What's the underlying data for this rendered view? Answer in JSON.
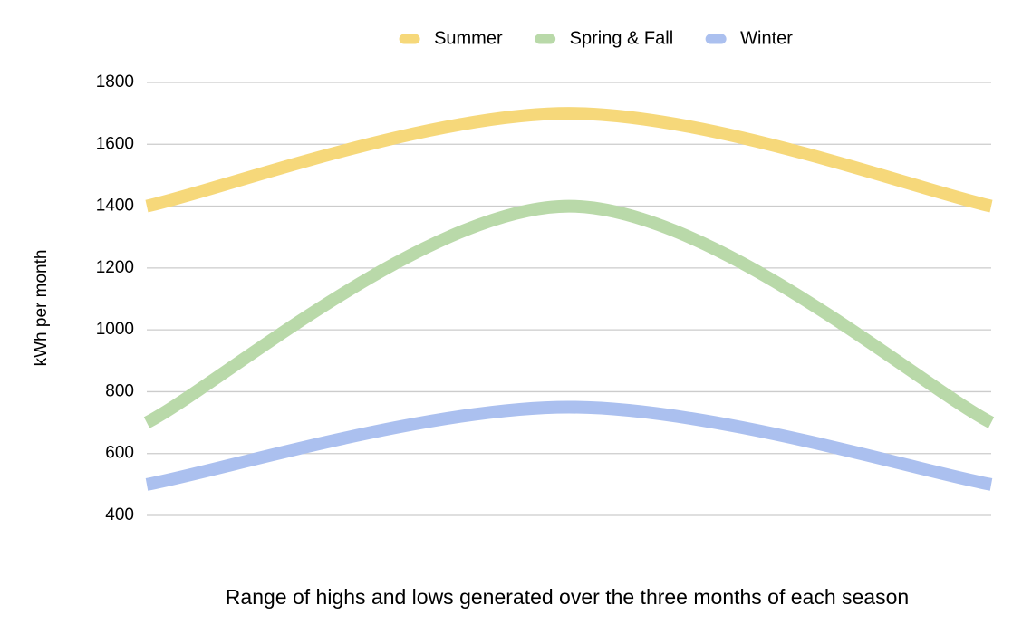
{
  "chart_data": {
    "type": "line",
    "x_label": "Range of highs and lows generated over the three months of each season",
    "y_label": "kWh per month",
    "categories": [
      null,
      null,
      null
    ],
    "series": [
      {
        "name": "Summer",
        "color": "#f6d87a",
        "values": [
          1400,
          1700,
          1400
        ]
      },
      {
        "name": "Spring & Fall",
        "color": "#b9d9a9",
        "values": [
          700,
          1400,
          700
        ]
      },
      {
        "name": "Winter",
        "color": "#abc0ef",
        "values": [
          500,
          750,
          500
        ]
      }
    ],
    "ylim": [
      400,
      1800
    ],
    "yticks": [
      400,
      600,
      800,
      1000,
      1200,
      1400,
      1600,
      1800
    ],
    "grid": true,
    "legend": "top",
    "smooth": true
  }
}
